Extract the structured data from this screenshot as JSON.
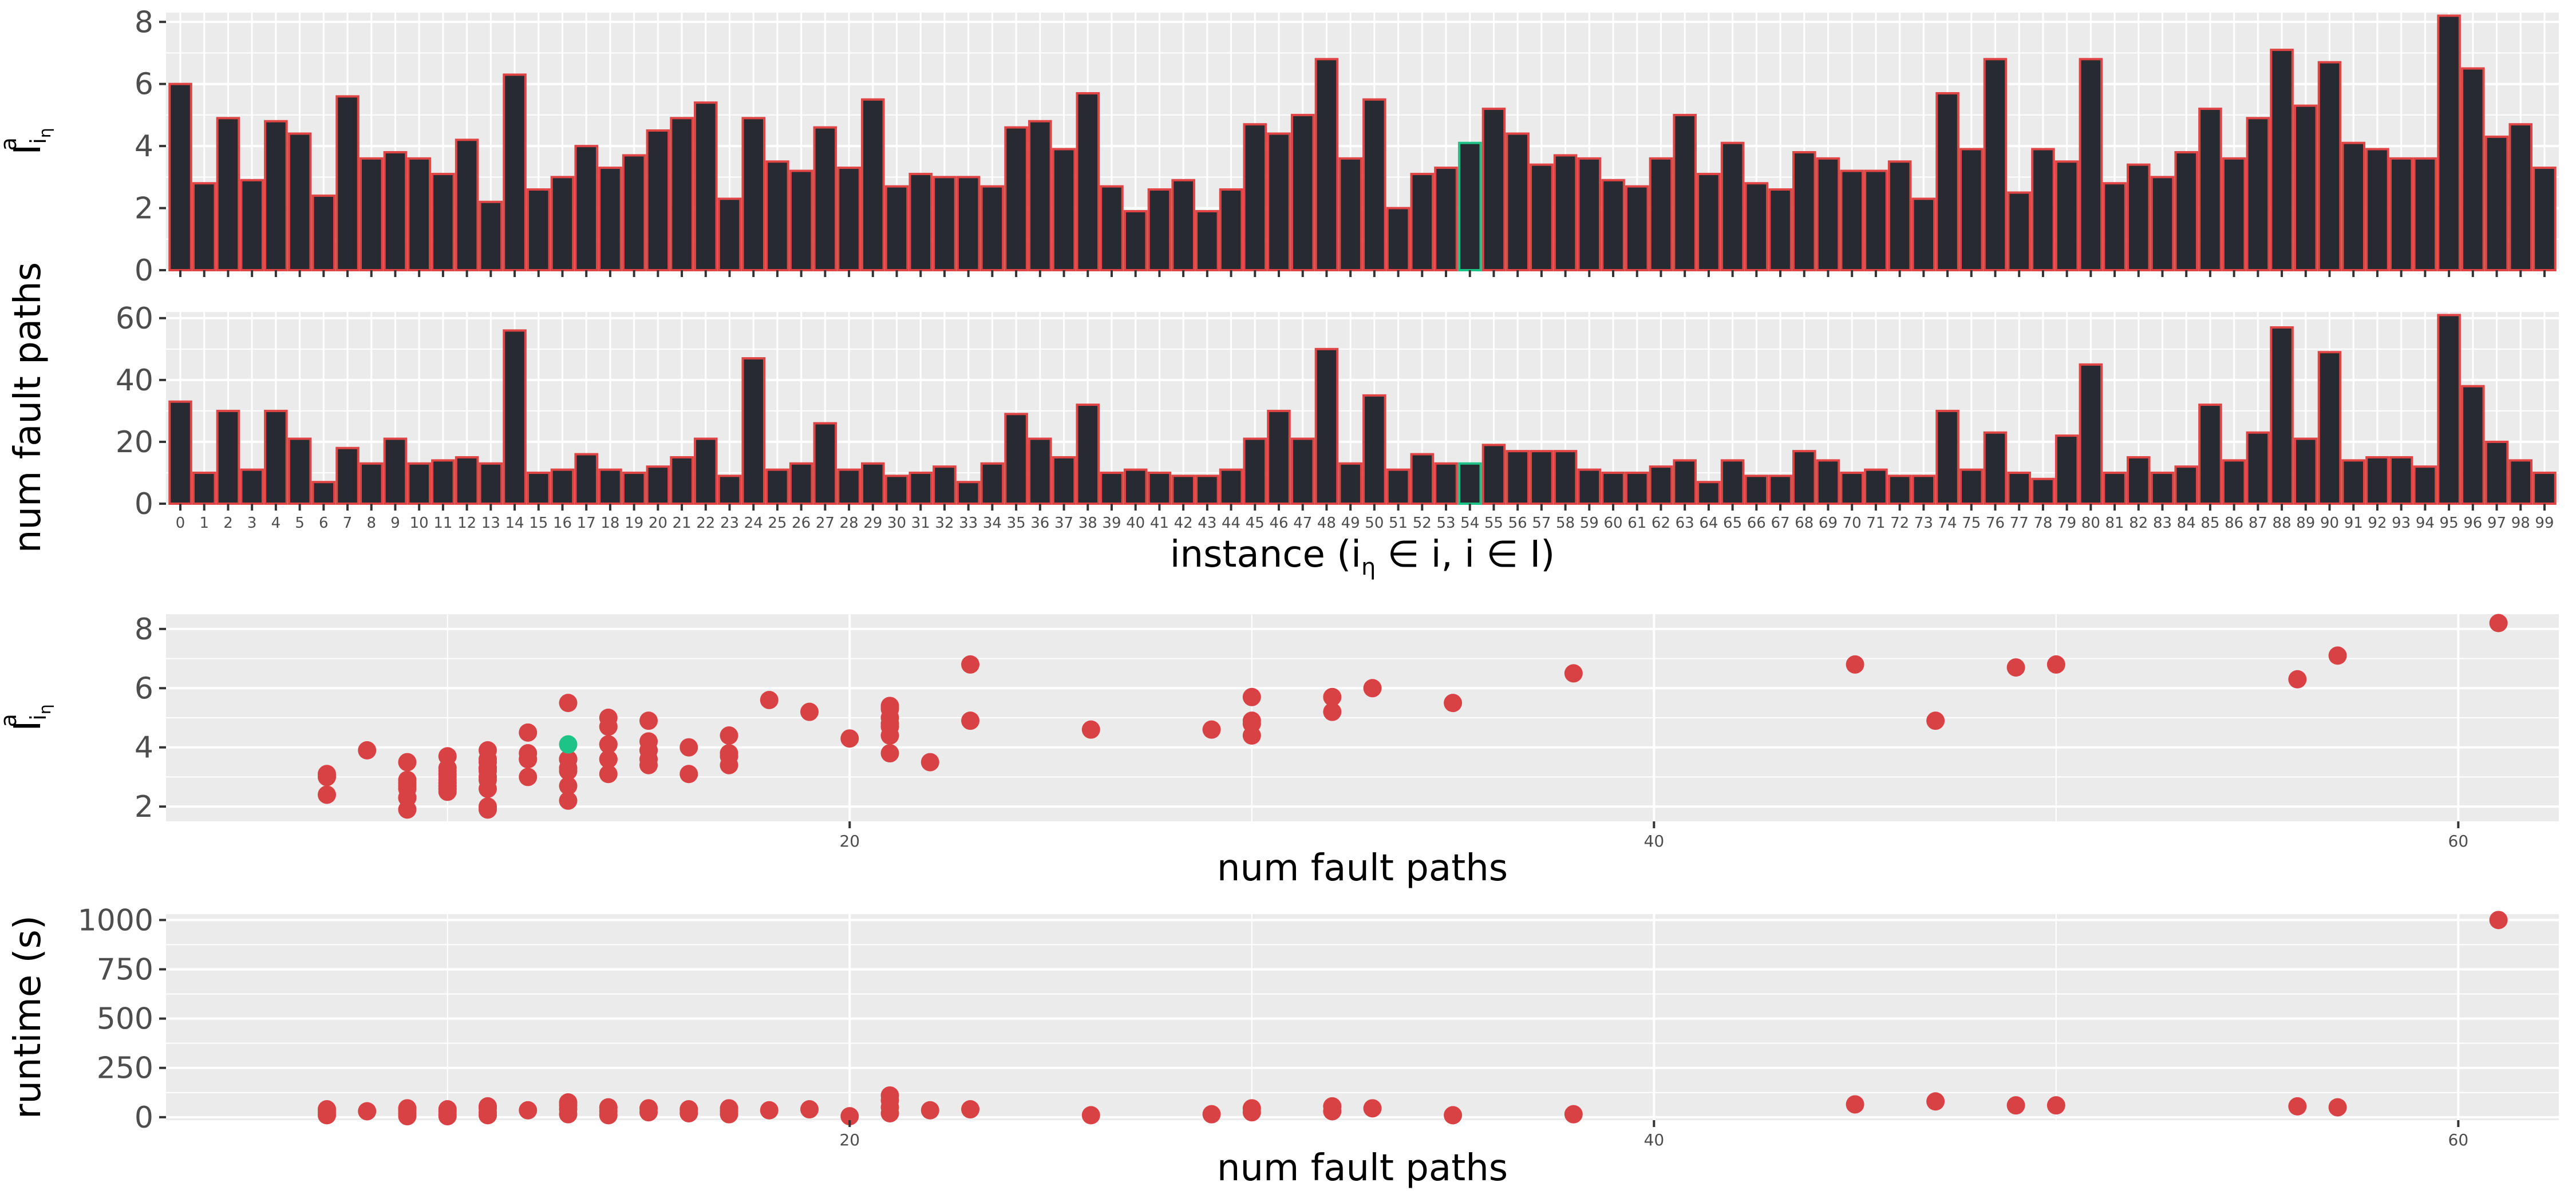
{
  "colors": {
    "panel_bg": "#EBEBEB",
    "grid_major": "#FFFFFF",
    "bar_fill": "#272A30",
    "bar_outline": "#E04545",
    "highlight": "#1EC487",
    "point": "#D94245",
    "axis_text": "#4D4D4D",
    "title_text": "#000000"
  },
  "highlight_instance": 54,
  "chart_data": [
    {
      "type": "bar",
      "panel": "top",
      "ylabel": "I^a_{i_η}",
      "ylabel_parts": {
        "main": "I",
        "sup": "a",
        "sub": "i",
        "subsub": "η"
      },
      "ylim": [
        0,
        8.3
      ],
      "yticks": [
        0,
        2,
        4,
        6,
        8
      ],
      "categories": [
        "0",
        "1",
        "2",
        "3",
        "4",
        "5",
        "6",
        "7",
        "8",
        "9",
        "10",
        "11",
        "12",
        "13",
        "14",
        "15",
        "16",
        "17",
        "18",
        "19",
        "20",
        "21",
        "22",
        "23",
        "24",
        "25",
        "26",
        "27",
        "28",
        "29",
        "30",
        "31",
        "32",
        "33",
        "34",
        "35",
        "36",
        "37",
        "38",
        "39",
        "40",
        "41",
        "42",
        "43",
        "44",
        "45",
        "46",
        "47",
        "48",
        "49",
        "50",
        "51",
        "52",
        "53",
        "54",
        "55",
        "56",
        "57",
        "58",
        "59",
        "60",
        "61",
        "62",
        "63",
        "64",
        "65",
        "66",
        "67",
        "68",
        "69",
        "70",
        "71",
        "72",
        "73",
        "74",
        "75",
        "76",
        "77",
        "78",
        "79",
        "80",
        "81",
        "82",
        "83",
        "84",
        "85",
        "86",
        "87",
        "88",
        "89",
        "90",
        "91",
        "92",
        "93",
        "94",
        "95",
        "96",
        "97",
        "98",
        "99"
      ],
      "values": [
        6.0,
        2.8,
        4.9,
        2.9,
        4.8,
        4.4,
        2.4,
        5.6,
        3.6,
        3.8,
        3.6,
        3.1,
        4.2,
        2.2,
        6.3,
        2.6,
        3.0,
        4.0,
        3.3,
        3.7,
        4.5,
        4.9,
        5.4,
        2.3,
        4.9,
        3.5,
        3.2,
        4.6,
        3.3,
        5.5,
        2.7,
        3.1,
        3.0,
        3.0,
        2.7,
        4.6,
        4.8,
        3.9,
        5.7,
        2.7,
        1.9,
        2.6,
        2.9,
        1.9,
        2.6,
        4.7,
        4.4,
        5.0,
        6.8,
        3.6,
        5.5,
        2.0,
        3.1,
        3.3,
        4.1,
        5.2,
        4.4,
        3.4,
        3.7,
        3.6,
        2.9,
        2.7,
        3.6,
        5.0,
        3.1,
        4.1,
        2.8,
        2.6,
        3.8,
        3.6,
        3.2,
        3.2,
        3.5,
        2.3,
        5.7,
        3.9,
        6.8,
        2.5,
        3.9,
        3.5,
        6.8,
        2.8,
        3.4,
        3.0,
        3.8,
        5.2,
        3.6,
        4.9,
        7.1,
        5.3,
        6.7,
        4.1,
        3.9,
        3.6,
        3.6,
        8.2,
        6.5,
        4.3,
        4.7,
        3.3
      ]
    },
    {
      "type": "bar",
      "panel": "second",
      "ylabel": "num fault paths",
      "xlabel": "instance (i_η ∈ i, i ∈ I)",
      "xlabel_parts": {
        "before": "instance (i",
        "sub": "η",
        "after": " ∈ i, i ∈ I)"
      },
      "ylim": [
        0,
        62
      ],
      "yticks": [
        0,
        20,
        40,
        60
      ],
      "categories": [
        "0",
        "1",
        "2",
        "3",
        "4",
        "5",
        "6",
        "7",
        "8",
        "9",
        "10",
        "11",
        "12",
        "13",
        "14",
        "15",
        "16",
        "17",
        "18",
        "19",
        "20",
        "21",
        "22",
        "23",
        "24",
        "25",
        "26",
        "27",
        "28",
        "29",
        "30",
        "31",
        "32",
        "33",
        "34",
        "35",
        "36",
        "37",
        "38",
        "39",
        "40",
        "41",
        "42",
        "43",
        "44",
        "45",
        "46",
        "47",
        "48",
        "49",
        "50",
        "51",
        "52",
        "53",
        "54",
        "55",
        "56",
        "57",
        "58",
        "59",
        "60",
        "61",
        "62",
        "63",
        "64",
        "65",
        "66",
        "67",
        "68",
        "69",
        "70",
        "71",
        "72",
        "73",
        "74",
        "75",
        "76",
        "77",
        "78",
        "79",
        "80",
        "81",
        "82",
        "83",
        "84",
        "85",
        "86",
        "87",
        "88",
        "89",
        "90",
        "91",
        "92",
        "93",
        "94",
        "95",
        "96",
        "97",
        "98",
        "99"
      ],
      "values": [
        33,
        10,
        30,
        11,
        30,
        21,
        7,
        18,
        13,
        21,
        13,
        14,
        15,
        13,
        56,
        10,
        11,
        16,
        11,
        10,
        12,
        15,
        21,
        9,
        47,
        11,
        13,
        26,
        11,
        13,
        9,
        10,
        12,
        7,
        13,
        29,
        21,
        15,
        32,
        10,
        11,
        10,
        9,
        9,
        11,
        21,
        30,
        21,
        50,
        13,
        35,
        11,
        16,
        13,
        13,
        19,
        17,
        17,
        17,
        11,
        10,
        10,
        12,
        14,
        7,
        14,
        9,
        9,
        17,
        14,
        10,
        11,
        9,
        9,
        30,
        11,
        23,
        10,
        8,
        22,
        45,
        10,
        15,
        10,
        12,
        32,
        14,
        23,
        57,
        21,
        49,
        14,
        15,
        15,
        12,
        61,
        38,
        20,
        14,
        10
      ]
    },
    {
      "type": "scatter",
      "panel": "third",
      "xlabel": "num fault paths",
      "ylabel": "I^a_{i_η}",
      "ylabel_parts": {
        "main": "I",
        "sup": "a",
        "sub": "i",
        "subsub": "η"
      },
      "xlim": [
        3,
        62.5
      ],
      "ylim": [
        1.5,
        8.5
      ],
      "xticks": [
        20,
        40,
        60
      ],
      "yticks": [
        2,
        4,
        6,
        8
      ],
      "x_minor_grid": [
        10,
        30,
        50
      ],
      "points_x": [
        33,
        10,
        30,
        11,
        30,
        21,
        7,
        18,
        13,
        21,
        13,
        14,
        15,
        13,
        56,
        10,
        11,
        16,
        11,
        10,
        12,
        15,
        21,
        9,
        47,
        11,
        13,
        26,
        11,
        13,
        9,
        10,
        12,
        7,
        13,
        29,
        21,
        15,
        32,
        10,
        11,
        10,
        9,
        9,
        11,
        21,
        30,
        21,
        50,
        13,
        35,
        11,
        16,
        13,
        13,
        19,
        17,
        17,
        17,
        11,
        10,
        10,
        12,
        14,
        7,
        14,
        9,
        9,
        17,
        14,
        10,
        11,
        9,
        9,
        30,
        11,
        23,
        10,
        8,
        22,
        45,
        10,
        15,
        10,
        12,
        32,
        14,
        23,
        57,
        21,
        49,
        14,
        15,
        15,
        12,
        61,
        38,
        20,
        14,
        10
      ],
      "points_y": [
        6.0,
        2.8,
        4.9,
        2.9,
        4.8,
        4.4,
        2.4,
        5.6,
        3.6,
        3.8,
        3.6,
        3.1,
        4.2,
        2.2,
        6.3,
        2.6,
        3.0,
        4.0,
        3.3,
        3.7,
        4.5,
        4.9,
        5.4,
        2.3,
        4.9,
        3.5,
        3.2,
        4.6,
        3.3,
        5.5,
        2.7,
        3.1,
        3.0,
        3.0,
        2.7,
        4.6,
        4.8,
        3.9,
        5.7,
        2.7,
        1.9,
        2.6,
        2.9,
        1.9,
        2.6,
        4.7,
        4.4,
        5.0,
        6.8,
        3.6,
        5.5,
        2.0,
        3.1,
        3.3,
        4.1,
        5.2,
        4.4,
        3.4,
        3.7,
        3.6,
        2.9,
        2.7,
        3.6,
        5.0,
        3.1,
        4.1,
        2.8,
        2.6,
        3.8,
        3.6,
        3.2,
        3.2,
        3.5,
        2.3,
        5.7,
        3.9,
        6.8,
        2.5,
        3.9,
        3.5,
        6.8,
        2.8,
        3.4,
        3.0,
        3.8,
        5.2,
        3.6,
        4.9,
        7.1,
        5.3,
        6.7,
        4.1,
        3.9,
        3.6,
        3.6,
        8.2,
        6.5,
        4.3,
        4.7,
        3.3
      ]
    },
    {
      "type": "scatter",
      "panel": "bottom",
      "xlabel": "num fault paths",
      "ylabel": "runtime (s)",
      "xlim": [
        3,
        62.5
      ],
      "ylim": [
        -15,
        1030
      ],
      "xticks": [
        20,
        40,
        60
      ],
      "yticks": [
        0,
        250,
        500,
        750,
        1000
      ],
      "x_minor_grid": [
        10,
        30,
        50
      ],
      "points_x": [
        7,
        7,
        7,
        8,
        9,
        9,
        9,
        9,
        10,
        10,
        10,
        10,
        11,
        11,
        11,
        11,
        12,
        13,
        13,
        13,
        13,
        14,
        14,
        14,
        15,
        15,
        16,
        16,
        17,
        17,
        17,
        18,
        19,
        20,
        21,
        21,
        21,
        21,
        22,
        23,
        26,
        29,
        30,
        30,
        32,
        32,
        33,
        35,
        38,
        45,
        47,
        49,
        50,
        56,
        57,
        61
      ],
      "points_y": [
        25,
        10,
        40,
        30,
        5,
        20,
        35,
        45,
        5,
        15,
        30,
        40,
        10,
        25,
        45,
        55,
        35,
        15,
        40,
        60,
        75,
        10,
        30,
        50,
        45,
        25,
        20,
        40,
        15,
        30,
        45,
        35,
        40,
        5,
        20,
        50,
        85,
        110,
        35,
        40,
        10,
        15,
        25,
        45,
        30,
        55,
        45,
        10,
        15,
        65,
        80,
        60,
        60,
        55,
        50,
        1000
      ]
    }
  ]
}
